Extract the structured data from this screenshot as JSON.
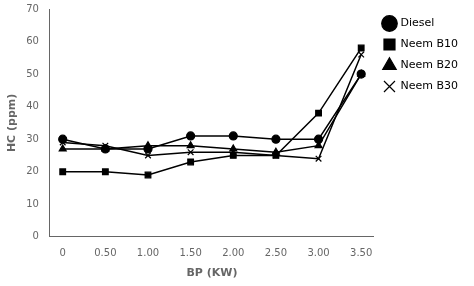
{
  "chart_data": {
    "type": "line",
    "x": [
      0,
      0.5,
      1,
      1.5,
      2,
      2.5,
      3,
      3.5
    ],
    "series": [
      {
        "name": "Diesel",
        "marker": "circle",
        "values": [
          30,
          27,
          27,
          31,
          31,
          30,
          30,
          50
        ]
      },
      {
        "name": "Neem B10",
        "marker": "square",
        "values": [
          20,
          20,
          19,
          23,
          25,
          25,
          38,
          58
        ]
      },
      {
        "name": "Neem B20",
        "marker": "triangle",
        "values": [
          27,
          27,
          28,
          28,
          27,
          26,
          28,
          50
        ]
      },
      {
        "name": "Neem B30",
        "marker": "x",
        "values": [
          29,
          28,
          25,
          26,
          26,
          25,
          24,
          56
        ]
      }
    ],
    "color": "#000000",
    "x_label": "BP (KW)",
    "y_label": "HC (ppm)",
    "xlim": [
      -0.15,
      3.65
    ],
    "xticks": [
      0,
      {
        "value": 0.5,
        "label": "0.50"
      },
      {
        "value": 1,
        "label": "1.00"
      },
      {
        "value": 1.5,
        "label": "1.50"
      },
      {
        "value": 2,
        "label": "2.00"
      },
      {
        "value": 2.5,
        "label": "2.50"
      },
      {
        "value": 3,
        "label": "3.00"
      },
      {
        "value": 3.5,
        "label": "3.50"
      }
    ],
    "ylim": [
      0,
      70
    ],
    "yticks": [
      0,
      10,
      20,
      30,
      40,
      50,
      60,
      70
    ],
    "grid": false,
    "legend": "right"
  }
}
